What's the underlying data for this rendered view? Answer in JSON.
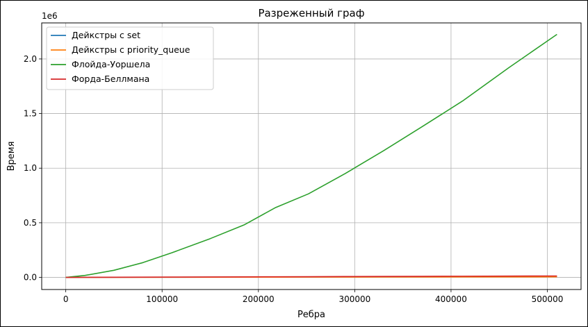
{
  "chart_data": {
    "type": "line",
    "title": "Разреженный граф",
    "xlabel": "Ребра",
    "ylabel": "Время",
    "y_offset_label": "1e6",
    "xlim": [
      -25000,
      535000
    ],
    "ylim": [
      -0.111,
      2.33
    ],
    "x_ticks": [
      0,
      100000,
      200000,
      300000,
      400000,
      500000
    ],
    "x_tick_labels": [
      "0",
      "100000",
      "200000",
      "300000",
      "400000",
      "500000"
    ],
    "y_ticks": [
      0.0,
      0.5,
      1.0,
      1.5,
      2.0
    ],
    "y_tick_labels": [
      "0.0",
      "0.5",
      "1.0",
      "1.5",
      "2.0"
    ],
    "grid": true,
    "legend_position": "upper-left",
    "series": [
      {
        "name": "Дейкстры с set",
        "color": "#1f77b4",
        "x": [
          0,
          20000,
          50000,
          80000,
          110000,
          150000,
          185000,
          218000,
          252000,
          290000,
          330000,
          370000,
          412000,
          460000,
          510000
        ],
        "y": [
          0.0,
          0.0003,
          0.0007,
          0.0011,
          0.0015,
          0.002,
          0.0025,
          0.003,
          0.0034,
          0.0039,
          0.0044,
          0.0049,
          0.0054,
          0.006,
          0.0066
        ]
      },
      {
        "name": "Дейкстры с priority_queue",
        "color": "#ff7f0e",
        "x": [
          0,
          20000,
          50000,
          80000,
          110000,
          150000,
          185000,
          218000,
          252000,
          290000,
          330000,
          370000,
          412000,
          460000,
          510000
        ],
        "y": [
          0.0,
          0.0002,
          0.0005,
          0.0008,
          0.0011,
          0.0015,
          0.0019,
          0.0022,
          0.0026,
          0.003,
          0.0034,
          0.0038,
          0.0042,
          0.0047,
          0.0052
        ]
      },
      {
        "name": "Флойда-Уоршела",
        "color": "#2ca02c",
        "x": [
          0,
          20000,
          50000,
          80000,
          110000,
          150000,
          185000,
          218000,
          252000,
          290000,
          330000,
          370000,
          412000,
          460000,
          510000
        ],
        "y": [
          0.0,
          0.018,
          0.065,
          0.135,
          0.225,
          0.355,
          0.48,
          0.64,
          0.765,
          0.95,
          1.16,
          1.38,
          1.615,
          1.92,
          2.225
        ]
      },
      {
        "name": "Форда-Беллмана",
        "color": "#d62728",
        "x": [
          0,
          20000,
          50000,
          80000,
          110000,
          150000,
          185000,
          218000,
          252000,
          290000,
          330000,
          370000,
          412000,
          460000,
          510000
        ],
        "y": [
          0.0,
          0.0005,
          0.0012,
          0.002,
          0.0028,
          0.0038,
          0.0047,
          0.0056,
          0.0065,
          0.0075,
          0.0085,
          0.0095,
          0.0106,
          0.0118,
          0.013
        ]
      }
    ]
  }
}
